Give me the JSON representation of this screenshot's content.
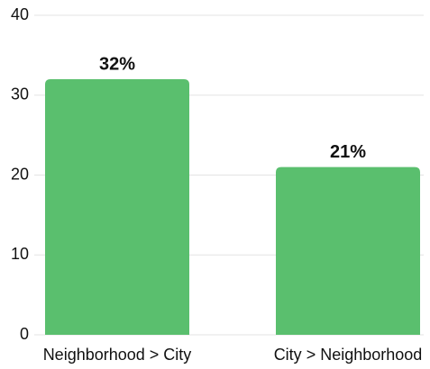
{
  "chart_data": {
    "type": "bar",
    "categories": [
      "Neighborhood > City",
      "City > Neighborhood"
    ],
    "values": [
      32,
      21
    ],
    "value_labels": [
      "32%",
      "21%"
    ],
    "color": "#5abf6e",
    "ylim": [
      0,
      40
    ],
    "yticks": [
      0,
      10,
      20,
      30,
      40
    ],
    "grid": true
  }
}
